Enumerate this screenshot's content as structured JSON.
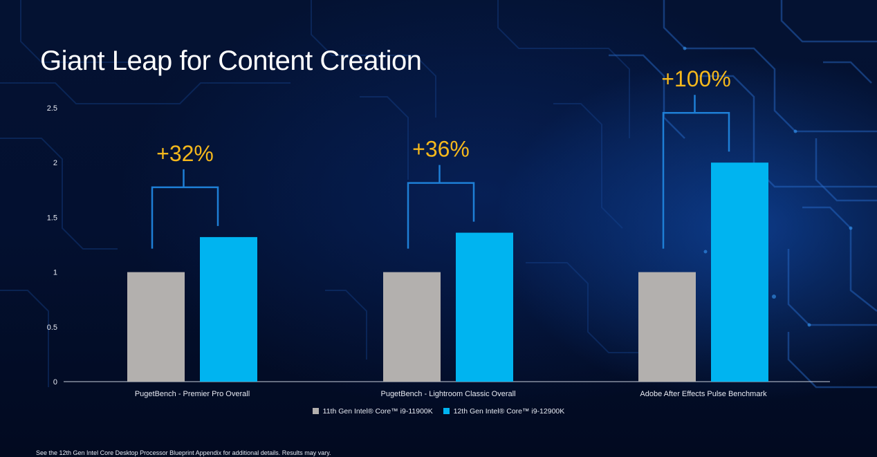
{
  "title": "Giant Leap for Content Creation",
  "footnote": "See the 12th Gen Intel Core Desktop Processor Blueprint Appendix for additional details. Results may vary.",
  "colors": {
    "series_11th": "#b3b0ae",
    "series_12th": "#00b4f0",
    "bracket": "#1e7fd6",
    "annotation": "#f5b81c",
    "axis": "#e8ebf3"
  },
  "chart_data": {
    "type": "bar",
    "title": "Giant Leap for Content Creation",
    "xlabel": "",
    "ylabel": "",
    "ylim": [
      0,
      2.5
    ],
    "yticks": [
      0,
      0.5,
      1,
      1.5,
      2,
      2.5
    ],
    "ytick_labels": [
      "0",
      "0.5",
      "1",
      "1.5",
      "2",
      "2.5"
    ],
    "grid": false,
    "categories": [
      "PugetBench - Premier Pro Overall",
      "PugetBench - Lightroom Classic Overall",
      "Adobe After Effects Pulse Benchmark"
    ],
    "series": [
      {
        "name": "11th Gen Intel® Core™ i9-11900K",
        "values": [
          1,
          1,
          1
        ]
      },
      {
        "name": "12th Gen Intel® Core™ i9-12900K",
        "values": [
          1.32,
          1.36,
          2.0
        ]
      }
    ],
    "annotations": [
      "+32%",
      "+36%",
      "+100%"
    ],
    "legend_position": "bottom-center"
  }
}
